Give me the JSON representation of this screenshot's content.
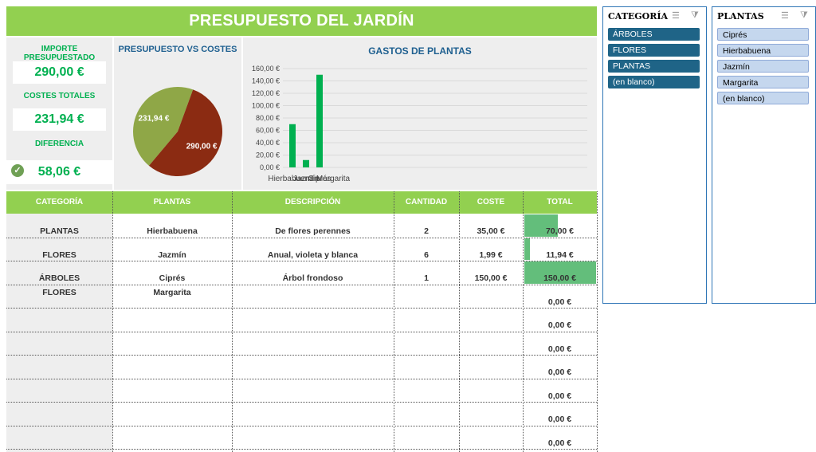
{
  "title": "PRESUPUESTO DEL JARDÍN",
  "kpis": {
    "importe_label": "IMPORTE PRESUPUESTADO",
    "importe_value": "290,00 €",
    "costes_label": "COSTES TOTALES",
    "costes_value": "231,94 €",
    "diferencia_label": "DIFERENCIA",
    "diferencia_value": "58,06 €"
  },
  "chart_data": [
    {
      "type": "pie",
      "title": "PRESUPUESTO VS COSTES",
      "labels": [
        "231,94 €",
        "290,00 €"
      ],
      "values": [
        231.94,
        290.0
      ],
      "colors": [
        "#8fa747",
        "#8b2b12"
      ]
    },
    {
      "type": "bar",
      "title": "GASTOS DE PLANTAS",
      "categories": [
        "Hierbabuena",
        "Jazmín",
        "Ciprés",
        "Margarita"
      ],
      "values": [
        70.0,
        11.94,
        150.0,
        0.0
      ],
      "tick_labels": [
        "160,00 €",
        "140,00 €",
        "120,00 €",
        "100,00 €",
        "80,00 €",
        "60,00 €",
        "40,00 €",
        "20,00 €",
        "0,00 €"
      ],
      "ylim": [
        0,
        160
      ],
      "grid": true,
      "color": "#00b050"
    }
  ],
  "table": {
    "headers": [
      "CATEGORÍA",
      "PLANTAS",
      "DESCRIPCIÓN",
      "CANTIDAD",
      "COSTE",
      "TOTAL"
    ],
    "rows": [
      {
        "categoria": "PLANTAS",
        "planta": "Hierbabuena",
        "descripcion": "De flores perennes",
        "cantidad": "2",
        "coste": "35,00 €",
        "total": "70,00 €",
        "total_num": 70.0
      },
      {
        "categoria": "FLORES",
        "planta": "Jazmín",
        "descripcion": "Anual, violeta y blanca",
        "cantidad": "6",
        "coste": "1,99 €",
        "total": "11,94 €",
        "total_num": 11.94
      },
      {
        "categoria": "ÁRBOLES",
        "planta": "Ciprés",
        "descripcion": "Árbol frondoso",
        "cantidad": "1",
        "coste": "150,00 €",
        "total": "150,00 €",
        "total_num": 150.0
      },
      {
        "categoria": "FLORES",
        "planta": "Margarita",
        "descripcion": "",
        "cantidad": "",
        "coste": "",
        "total": "0,00 €",
        "total_num": 0
      },
      {
        "categoria": "",
        "planta": "",
        "descripcion": "",
        "cantidad": "",
        "coste": "",
        "total": "0,00 €",
        "total_num": 0
      },
      {
        "categoria": "",
        "planta": "",
        "descripcion": "",
        "cantidad": "",
        "coste": "",
        "total": "0,00 €",
        "total_num": 0
      },
      {
        "categoria": "",
        "planta": "",
        "descripcion": "",
        "cantidad": "",
        "coste": "",
        "total": "0,00 €",
        "total_num": 0
      },
      {
        "categoria": "",
        "planta": "",
        "descripcion": "",
        "cantidad": "",
        "coste": "",
        "total": "0,00 €",
        "total_num": 0
      },
      {
        "categoria": "",
        "planta": "",
        "descripcion": "",
        "cantidad": "",
        "coste": "",
        "total": "0,00 €",
        "total_num": 0
      },
      {
        "categoria": "",
        "planta": "",
        "descripcion": "",
        "cantidad": "",
        "coste": "",
        "total": "0,00 €",
        "total_num": 0
      }
    ],
    "databar_max": 150.0
  },
  "slicers": {
    "categoria": {
      "title": "CATEGORÍA",
      "items": [
        "ÁRBOLES",
        "FLORES",
        "PLANTAS",
        "(en blanco)"
      ],
      "multiselect_icon": "multiselect-icon",
      "clear_icon": "clear-filter-icon"
    },
    "plantas": {
      "title": "PLANTAS",
      "items": [
        "Ciprés",
        "Hierbabuena",
        "Jazmín",
        "Margarita",
        "(en blanco)"
      ],
      "multiselect_icon": "multiselect-icon",
      "clear_icon": "clear-filter-icon"
    }
  }
}
